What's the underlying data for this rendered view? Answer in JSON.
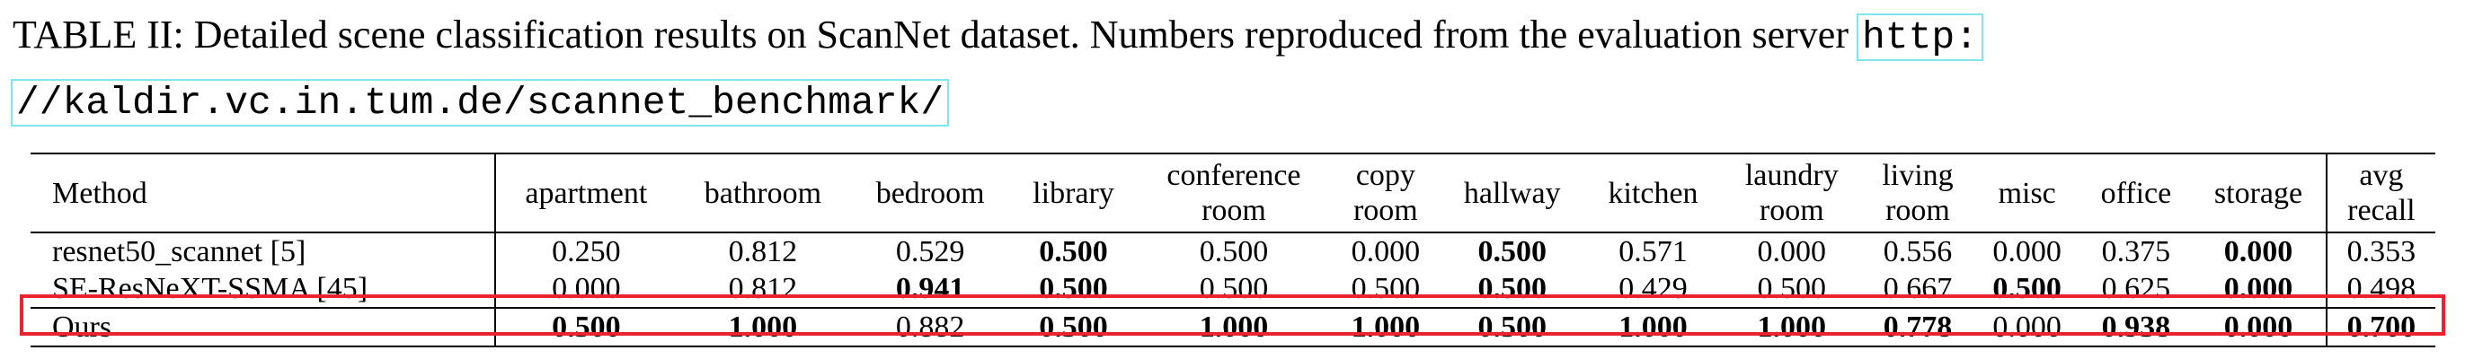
{
  "caption": {
    "text": "TABLE II: Detailed scene classification results on ScanNet dataset. Numbers reproduced from the evaluation server ",
    "url_line1": "http:",
    "url_line2": "//kaldir.vc.in.tum.de/scannet_benchmark/"
  },
  "table": {
    "method_header": "Method",
    "columns": [
      [
        "apartment"
      ],
      [
        "bathroom"
      ],
      [
        "bedroom"
      ],
      [
        "library"
      ],
      [
        "conference",
        "room"
      ],
      [
        "copy",
        "room"
      ],
      [
        "hallway"
      ],
      [
        "kitchen"
      ],
      [
        "laundry",
        "room"
      ],
      [
        "living",
        "room"
      ],
      [
        "misc"
      ],
      [
        "office"
      ],
      [
        "storage"
      ],
      [
        "avg",
        "recall"
      ]
    ],
    "rows": [
      {
        "method": "resnet50_scannet [5]",
        "values": [
          "0.250",
          "0.812",
          "0.529",
          "0.500",
          "0.500",
          "0.000",
          "0.500",
          "0.571",
          "0.000",
          "0.556",
          "0.000",
          "0.375",
          "0.000",
          "0.353"
        ],
        "bold": [
          false,
          false,
          false,
          true,
          false,
          false,
          true,
          false,
          false,
          false,
          false,
          false,
          true,
          false
        ]
      },
      {
        "method": "SE-ResNeXT-SSMA [45]",
        "values": [
          "0.000",
          "0.812",
          "0.941",
          "0.500",
          "0.500",
          "0.500",
          "0.500",
          "0.429",
          "0.500",
          "0.667",
          "0.500",
          "0.625",
          "0.000",
          "0.498"
        ],
        "bold": [
          false,
          false,
          true,
          true,
          false,
          false,
          true,
          false,
          false,
          false,
          true,
          false,
          true,
          false
        ]
      },
      {
        "method": "Ours",
        "values": [
          "0.500",
          "1.000",
          "0.882",
          "0.500",
          "1.000",
          "1.000",
          "0.500",
          "1.000",
          "1.000",
          "0.778",
          "0.000",
          "0.938",
          "0.000",
          "0.700"
        ],
        "bold": [
          true,
          true,
          false,
          true,
          true,
          true,
          true,
          true,
          true,
          true,
          false,
          true,
          true,
          true
        ]
      }
    ]
  },
  "colors": {
    "url_box": "#7fe6ee",
    "highlight_box": "#e8242e"
  }
}
